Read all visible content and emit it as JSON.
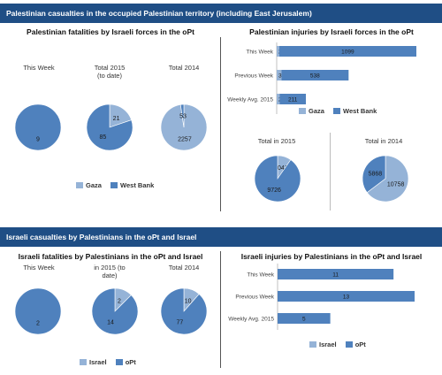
{
  "colors": {
    "gaza": "#95b3d7",
    "westbank": "#4f81bd",
    "band": "#1f4e85"
  },
  "section1": {
    "banner": "Palestinian casualties in the occupied Palestinian territory (including East Jerusalem)",
    "fatalities_title": "Palestinian fatalities by Israeli forces in the oPt",
    "injuries_title": "Palestinian injuries by Israeli forces in the oPt",
    "pie_titles": [
      "This Week",
      "Total 2015\n(to date)",
      "Total 2014"
    ],
    "small_pie_titles": [
      "Total in 2015",
      "Total in 2014"
    ],
    "legend": [
      "Gaza",
      "West Bank"
    ]
  },
  "section2": {
    "banner": "Israeli casualties by Palestinians in the oPt and Israel",
    "fatalities_title": "Israeli fatalities by Palestinians in the oPt and Israel",
    "injuries_title": "Israeli injuries by Palestinians in the oPt and Israel",
    "pie_titles": [
      "This Week",
      "in 2015 (to\ndate)",
      "Total 2014"
    ],
    "legend": [
      "Israel",
      "oPt"
    ]
  },
  "chart_data": [
    {
      "type": "pie",
      "title": "This Week",
      "categories": [
        "Gaza",
        "West Bank"
      ],
      "values": [
        0,
        9
      ]
    },
    {
      "type": "pie",
      "title": "Total 2015 (to date)",
      "categories": [
        "Gaza",
        "West Bank"
      ],
      "values": [
        21,
        85
      ]
    },
    {
      "type": "pie",
      "title": "Total 2014",
      "categories": [
        "Gaza",
        "West Bank"
      ],
      "values": [
        2257,
        53
      ]
    },
    {
      "type": "bar",
      "orientation": "horizontal",
      "categories": [
        "This Week",
        "Previous Week",
        "Weekly Avg. 2015"
      ],
      "series": [
        {
          "name": "Gaza",
          "values": [
            20,
            38,
            23
          ]
        },
        {
          "name": "West Bank",
          "values": [
            1099,
            538,
            211
          ]
        }
      ]
    },
    {
      "type": "pie",
      "title": "Total in 2015",
      "categories": [
        "Gaza",
        "West Bank"
      ],
      "values": [
        1041,
        9726
      ]
    },
    {
      "type": "pie",
      "title": "Total in 2014",
      "categories": [
        "Gaza",
        "West Bank"
      ],
      "values": [
        10758,
        5868
      ]
    },
    {
      "type": "pie",
      "title": "This Week",
      "categories": [
        "Israel",
        "oPt"
      ],
      "values": [
        0,
        2
      ]
    },
    {
      "type": "pie",
      "title": "in 2015 (to date)",
      "categories": [
        "Israel",
        "oPt"
      ],
      "values": [
        2,
        14
      ]
    },
    {
      "type": "pie",
      "title": "Total 2014",
      "categories": [
        "Israel",
        "oPt"
      ],
      "values": [
        10,
        77
      ]
    },
    {
      "type": "bar",
      "orientation": "horizontal",
      "categories": [
        "This Week",
        "Previous Week",
        "Weekly Avg. 2015"
      ],
      "series": [
        {
          "name": "Israel",
          "values": [
            0,
            0,
            0
          ]
        },
        {
          "name": "oPt",
          "values": [
            11,
            13,
            5
          ]
        }
      ]
    }
  ]
}
